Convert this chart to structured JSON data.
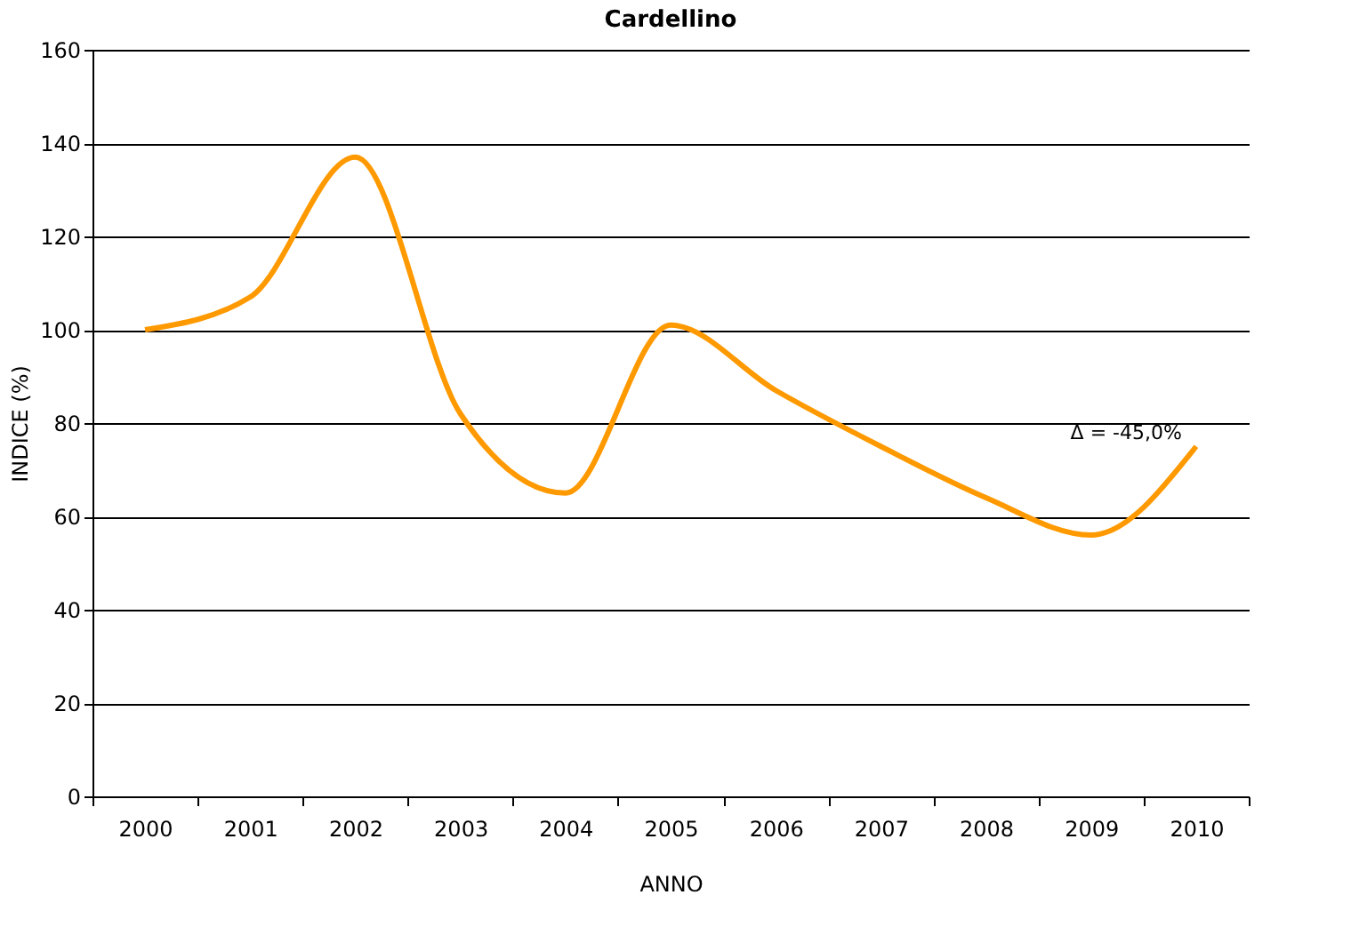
{
  "chart_data": {
    "type": "line",
    "title": "Cardellino",
    "xlabel": "ANNO",
    "ylabel": "INDICE (%)",
    "categories": [
      "2000",
      "2001",
      "2002",
      "2003",
      "2004",
      "2005",
      "2006",
      "2007",
      "2008",
      "2009",
      "2010"
    ],
    "series": [
      {
        "color": "#ff9900",
        "values": [
          100,
          107,
          137,
          82,
          65,
          101,
          87,
          75,
          64,
          56,
          75
        ]
      }
    ],
    "ylim": [
      0,
      160
    ],
    "yticks": [
      0,
      20,
      40,
      60,
      80,
      100,
      120,
      140,
      160
    ],
    "grid": "y",
    "marker": "none",
    "line_style": "solid",
    "annotations": [
      "Δ = -45,0%"
    ]
  }
}
